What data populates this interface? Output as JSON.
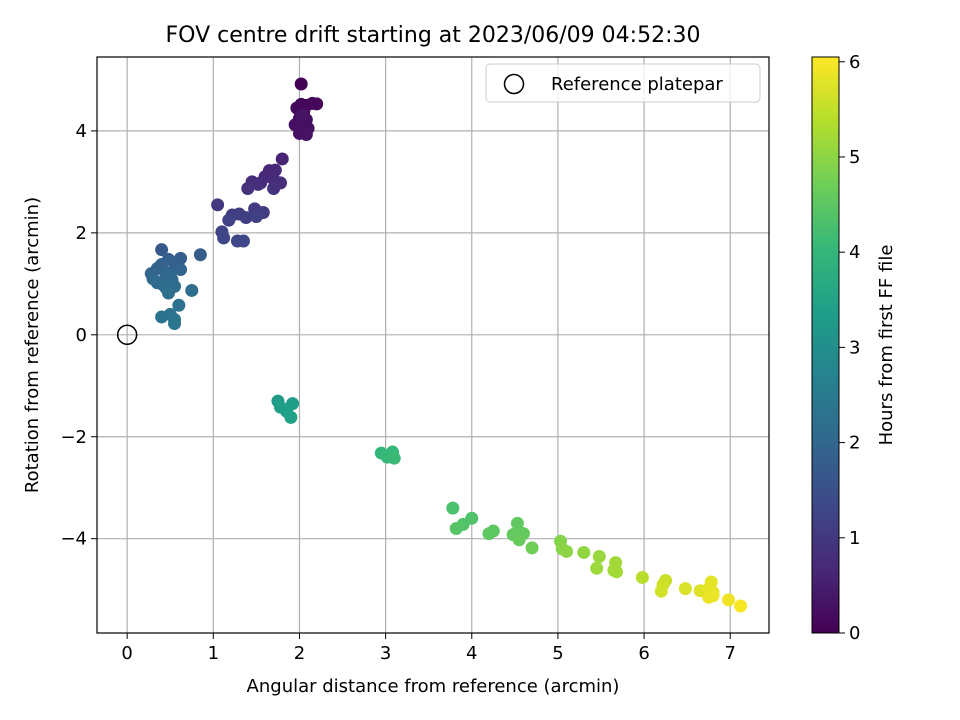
{
  "chart_data": {
    "type": "scatter",
    "title": "FOV centre drift starting at 2023/06/09 04:52:30",
    "xlabel": "Angular distance from reference (arcmin)",
    "ylabel": "Rotation from reference (arcmin)",
    "xlim": [
      -0.35,
      7.45
    ],
    "ylim": [
      -5.85,
      5.45
    ],
    "xticks": [
      0,
      1,
      2,
      3,
      4,
      5,
      6,
      7
    ],
    "yticks": [
      -4,
      -2,
      0,
      2,
      4
    ],
    "ytick_labels": [
      "−4",
      "−2",
      "0",
      "2",
      "4"
    ],
    "grid": true,
    "legend": {
      "placement": "top-right",
      "entries": [
        "Reference platepar"
      ]
    },
    "reference_point": {
      "label": "Reference platepar",
      "x": 0,
      "y": 0,
      "marker": "open-circle"
    },
    "colorbar": {
      "label": "Hours from first FF file",
      "range": [
        0,
        6.05
      ],
      "ticks": [
        0,
        1,
        2,
        3,
        4,
        5,
        6
      ],
      "colormap": "viridis",
      "colors": [
        "#440154",
        "#482878",
        "#3e4989",
        "#31688e",
        "#26828e",
        "#1f9e89",
        "#35b779",
        "#6ece58",
        "#b5de2b",
        "#fde725"
      ]
    },
    "points": [
      {
        "x": 2.02,
        "y": 4.92,
        "t": 0.02
      },
      {
        "x": 2.02,
        "y": 4.52,
        "t": 0.05
      },
      {
        "x": 2.08,
        "y": 4.5,
        "t": 0.08
      },
      {
        "x": 2.15,
        "y": 4.54,
        "t": 0.1
      },
      {
        "x": 2.2,
        "y": 4.53,
        "t": 0.12
      },
      {
        "x": 1.97,
        "y": 4.45,
        "t": 0.14
      },
      {
        "x": 2.05,
        "y": 4.38,
        "t": 0.16
      },
      {
        "x": 2.0,
        "y": 4.25,
        "t": 0.18
      },
      {
        "x": 2.08,
        "y": 4.22,
        "t": 0.2
      },
      {
        "x": 1.95,
        "y": 4.12,
        "t": 0.22
      },
      {
        "x": 2.02,
        "y": 4.1,
        "t": 0.24
      },
      {
        "x": 2.1,
        "y": 4.05,
        "t": 0.26
      },
      {
        "x": 2.0,
        "y": 3.95,
        "t": 0.28
      },
      {
        "x": 2.08,
        "y": 3.93,
        "t": 0.3
      },
      {
        "x": 2.03,
        "y": 4.3,
        "t": 0.32
      },
      {
        "x": 1.8,
        "y": 3.45,
        "t": 0.6
      },
      {
        "x": 1.65,
        "y": 3.22,
        "t": 0.65
      },
      {
        "x": 1.72,
        "y": 3.23,
        "t": 0.68
      },
      {
        "x": 1.6,
        "y": 3.1,
        "t": 0.7
      },
      {
        "x": 1.7,
        "y": 3.05,
        "t": 0.72
      },
      {
        "x": 1.55,
        "y": 2.98,
        "t": 0.75
      },
      {
        "x": 1.78,
        "y": 2.98,
        "t": 0.77
      },
      {
        "x": 1.45,
        "y": 3.0,
        "t": 0.8
      },
      {
        "x": 1.52,
        "y": 2.95,
        "t": 0.82
      },
      {
        "x": 1.4,
        "y": 2.87,
        "t": 0.85
      },
      {
        "x": 1.7,
        "y": 2.87,
        "t": 0.87
      },
      {
        "x": 1.05,
        "y": 2.55,
        "t": 1.0
      },
      {
        "x": 1.48,
        "y": 2.47,
        "t": 1.05
      },
      {
        "x": 1.58,
        "y": 2.4,
        "t": 1.08
      },
      {
        "x": 1.22,
        "y": 2.35,
        "t": 1.1
      },
      {
        "x": 1.3,
        "y": 2.37,
        "t": 1.12
      },
      {
        "x": 1.38,
        "y": 2.3,
        "t": 1.15
      },
      {
        "x": 1.5,
        "y": 2.32,
        "t": 1.17
      },
      {
        "x": 1.18,
        "y": 2.25,
        "t": 1.2
      },
      {
        "x": 1.1,
        "y": 2.02,
        "t": 1.25
      },
      {
        "x": 1.12,
        "y": 1.9,
        "t": 1.28
      },
      {
        "x": 1.28,
        "y": 1.84,
        "t": 1.3
      },
      {
        "x": 1.35,
        "y": 1.84,
        "t": 1.32
      },
      {
        "x": 0.4,
        "y": 1.67,
        "t": 1.7
      },
      {
        "x": 0.85,
        "y": 1.57,
        "t": 1.75
      },
      {
        "x": 0.62,
        "y": 1.5,
        "t": 1.8
      },
      {
        "x": 0.48,
        "y": 1.48,
        "t": 1.82
      },
      {
        "x": 0.55,
        "y": 1.42,
        "t": 1.85
      },
      {
        "x": 0.4,
        "y": 1.38,
        "t": 1.88
      },
      {
        "x": 0.35,
        "y": 1.3,
        "t": 1.9
      },
      {
        "x": 0.62,
        "y": 1.28,
        "t": 1.92
      },
      {
        "x": 0.5,
        "y": 1.22,
        "t": 1.95
      },
      {
        "x": 0.28,
        "y": 1.2,
        "t": 1.97
      },
      {
        "x": 0.45,
        "y": 1.15,
        "t": 2.0
      },
      {
        "x": 0.3,
        "y": 1.1,
        "t": 2.02
      },
      {
        "x": 0.52,
        "y": 1.08,
        "t": 2.05
      },
      {
        "x": 0.35,
        "y": 1.02,
        "t": 2.08
      },
      {
        "x": 0.42,
        "y": 0.98,
        "t": 2.1
      },
      {
        "x": 0.55,
        "y": 0.95,
        "t": 2.12
      },
      {
        "x": 0.45,
        "y": 0.92,
        "t": 2.14
      },
      {
        "x": 0.75,
        "y": 0.87,
        "t": 2.17
      },
      {
        "x": 0.48,
        "y": 0.82,
        "t": 2.2
      },
      {
        "x": 0.6,
        "y": 0.58,
        "t": 2.25
      },
      {
        "x": 0.5,
        "y": 0.4,
        "t": 2.28
      },
      {
        "x": 0.4,
        "y": 0.35,
        "t": 2.3
      },
      {
        "x": 0.55,
        "y": 0.3,
        "t": 2.33
      },
      {
        "x": 0.55,
        "y": 0.22,
        "t": 2.36
      },
      {
        "x": 1.75,
        "y": -1.3,
        "t": 3.3
      },
      {
        "x": 1.92,
        "y": -1.35,
        "t": 3.33
      },
      {
        "x": 1.78,
        "y": -1.42,
        "t": 3.36
      },
      {
        "x": 1.85,
        "y": -1.5,
        "t": 3.4
      },
      {
        "x": 1.9,
        "y": -1.62,
        "t": 3.43
      },
      {
        "x": 2.95,
        "y": -2.32,
        "t": 4.0
      },
      {
        "x": 3.08,
        "y": -2.3,
        "t": 4.03
      },
      {
        "x": 3.02,
        "y": -2.4,
        "t": 4.06
      },
      {
        "x": 3.1,
        "y": -2.42,
        "t": 4.09
      },
      {
        "x": 3.78,
        "y": -3.4,
        "t": 4.3
      },
      {
        "x": 4.0,
        "y": -3.6,
        "t": 4.35
      },
      {
        "x": 3.9,
        "y": -3.72,
        "t": 4.38
      },
      {
        "x": 3.82,
        "y": -3.8,
        "t": 4.42
      },
      {
        "x": 4.25,
        "y": -3.85,
        "t": 4.5
      },
      {
        "x": 4.2,
        "y": -3.9,
        "t": 4.52
      },
      {
        "x": 4.53,
        "y": -3.7,
        "t": 4.55
      },
      {
        "x": 4.48,
        "y": -3.92,
        "t": 4.57
      },
      {
        "x": 4.6,
        "y": -3.9,
        "t": 4.6
      },
      {
        "x": 4.55,
        "y": -4.02,
        "t": 4.62
      },
      {
        "x": 4.7,
        "y": -4.18,
        "t": 4.7
      },
      {
        "x": 5.03,
        "y": -4.05,
        "t": 4.9
      },
      {
        "x": 5.05,
        "y": -4.2,
        "t": 4.95
      },
      {
        "x": 5.1,
        "y": -4.25,
        "t": 5.0
      },
      {
        "x": 5.3,
        "y": -4.27,
        "t": 5.05
      },
      {
        "x": 5.48,
        "y": -4.35,
        "t": 5.1
      },
      {
        "x": 5.45,
        "y": -4.58,
        "t": 5.15
      },
      {
        "x": 5.67,
        "y": -4.47,
        "t": 5.18
      },
      {
        "x": 5.65,
        "y": -4.62,
        "t": 5.2
      },
      {
        "x": 5.68,
        "y": -4.65,
        "t": 5.22
      },
      {
        "x": 5.98,
        "y": -4.76,
        "t": 5.4
      },
      {
        "x": 6.25,
        "y": -4.82,
        "t": 5.55
      },
      {
        "x": 6.22,
        "y": -4.9,
        "t": 5.6
      },
      {
        "x": 6.2,
        "y": -5.03,
        "t": 5.65
      },
      {
        "x": 6.48,
        "y": -4.98,
        "t": 5.7
      },
      {
        "x": 6.65,
        "y": -5.02,
        "t": 5.75
      },
      {
        "x": 6.78,
        "y": -4.85,
        "t": 5.8
      },
      {
        "x": 6.75,
        "y": -4.98,
        "t": 5.82
      },
      {
        "x": 6.8,
        "y": -5.05,
        "t": 5.84
      },
      {
        "x": 6.75,
        "y": -5.15,
        "t": 5.86
      },
      {
        "x": 6.8,
        "y": -5.12,
        "t": 5.88
      },
      {
        "x": 6.98,
        "y": -5.2,
        "t": 5.92
      },
      {
        "x": 7.12,
        "y": -5.32,
        "t": 6.0
      }
    ]
  }
}
